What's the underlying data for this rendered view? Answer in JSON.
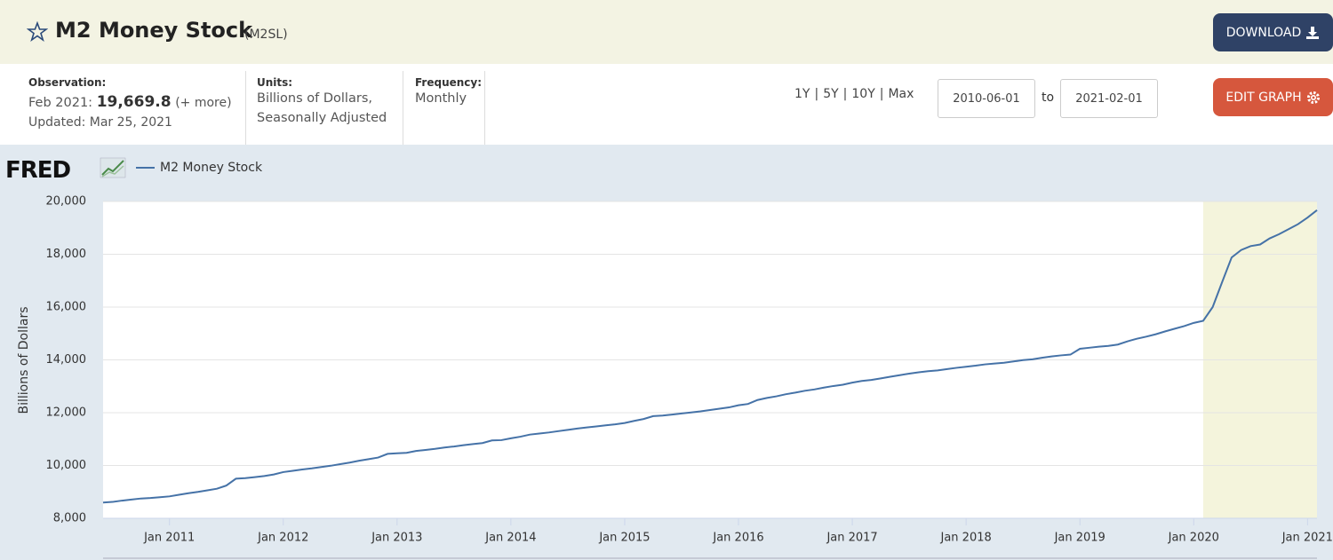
{
  "header": {
    "title": "M2 Money Stock",
    "series_id": "(M2SL)",
    "download": "DOWNLOAD"
  },
  "info": {
    "observation_label": "Observation:",
    "observation_date": "Feb 2021:",
    "observation_value": "19,669.8",
    "more": "(+ more)",
    "updated": "Updated: Mar 25, 2021",
    "units_label": "Units:",
    "units": [
      "Billions of Dollars,",
      "Seasonally Adjusted"
    ],
    "frequency_label": "Frequency:",
    "frequency": "Monthly"
  },
  "controls": {
    "ranges": [
      "1Y",
      "5Y",
      "10Y",
      "Max"
    ],
    "separator": "|",
    "start_date": "2010-06-01",
    "to": "to",
    "end_date": "2021-02-01",
    "edit": "EDIT GRAPH"
  },
  "chart_data": {
    "type": "line",
    "logo": "FRED",
    "y_label": "Billions of Dollars",
    "x": [
      "2010-06",
      "2010-07",
      "2010-08",
      "2010-09",
      "2010-10",
      "2010-11",
      "2010-12",
      "2011-01",
      "2011-02",
      "2011-03",
      "2011-04",
      "2011-05",
      "2011-06",
      "2011-07",
      "2011-08",
      "2011-09",
      "2011-10",
      "2011-11",
      "2011-12",
      "2012-01",
      "2012-02",
      "2012-03",
      "2012-04",
      "2012-05",
      "2012-06",
      "2012-07",
      "2012-08",
      "2012-09",
      "2012-10",
      "2012-11",
      "2012-12",
      "2013-01",
      "2013-02",
      "2013-03",
      "2013-04",
      "2013-05",
      "2013-06",
      "2013-07",
      "2013-08",
      "2013-09",
      "2013-10",
      "2013-11",
      "2013-12",
      "2014-01",
      "2014-02",
      "2014-03",
      "2014-04",
      "2014-05",
      "2014-06",
      "2014-07",
      "2014-08",
      "2014-09",
      "2014-10",
      "2014-11",
      "2014-12",
      "2015-01",
      "2015-02",
      "2015-03",
      "2015-04",
      "2015-05",
      "2015-06",
      "2015-07",
      "2015-08",
      "2015-09",
      "2015-10",
      "2015-11",
      "2015-12",
      "2016-01",
      "2016-02",
      "2016-03",
      "2016-04",
      "2016-05",
      "2016-06",
      "2016-07",
      "2016-08",
      "2016-09",
      "2016-10",
      "2016-11",
      "2016-12",
      "2017-01",
      "2017-02",
      "2017-03",
      "2017-04",
      "2017-05",
      "2017-06",
      "2017-07",
      "2017-08",
      "2017-09",
      "2017-10",
      "2017-11",
      "2017-12",
      "2018-01",
      "2018-02",
      "2018-03",
      "2018-04",
      "2018-05",
      "2018-06",
      "2018-07",
      "2018-08",
      "2018-09",
      "2018-10",
      "2018-11",
      "2018-12",
      "2019-01",
      "2019-02",
      "2019-03",
      "2019-04",
      "2019-05",
      "2019-06",
      "2019-07",
      "2019-08",
      "2019-09",
      "2019-10",
      "2019-11",
      "2019-12",
      "2020-01",
      "2020-02",
      "2020-03",
      "2020-04",
      "2020-05",
      "2020-06",
      "2020-07",
      "2020-08",
      "2020-09",
      "2020-10",
      "2020-11",
      "2020-12",
      "2021-01",
      "2021-02"
    ],
    "series": [
      {
        "name": "M2 Money Stock",
        "color": "#4572a7",
        "values": [
          8595,
          8620,
          8670,
          8710,
          8750,
          8770,
          8800,
          8830,
          8890,
          8950,
          9000,
          9060,
          9120,
          9240,
          9500,
          9520,
          9560,
          9600,
          9660,
          9750,
          9800,
          9850,
          9890,
          9940,
          9990,
          10050,
          10110,
          10180,
          10240,
          10300,
          10440,
          10460,
          10480,
          10550,
          10590,
          10630,
          10680,
          10720,
          10770,
          10810,
          10850,
          10950,
          10960,
          11030,
          11090,
          11170,
          11210,
          11250,
          11300,
          11350,
          11400,
          11440,
          11480,
          11520,
          11560,
          11610,
          11690,
          11760,
          11870,
          11890,
          11930,
          11970,
          12010,
          12050,
          12100,
          12150,
          12200,
          12280,
          12330,
          12480,
          12560,
          12620,
          12700,
          12760,
          12830,
          12880,
          12950,
          13010,
          13060,
          13140,
          13200,
          13240,
          13300,
          13360,
          13420,
          13480,
          13530,
          13570,
          13600,
          13650,
          13700,
          13740,
          13780,
          13830,
          13860,
          13890,
          13940,
          13990,
          14020,
          14080,
          14130,
          14170,
          14200,
          14420,
          14460,
          14500,
          14530,
          14580,
          14700,
          14800,
          14880,
          14970,
          15080,
          15180,
          15280,
          15400,
          15480,
          16000,
          16950,
          17880,
          18160,
          18310,
          18370,
          18600,
          18760,
          18950,
          19140,
          19390,
          19669.8
        ]
      }
    ],
    "xlim": [
      "2010-06",
      "2021-02"
    ],
    "xticks": [
      {
        "value": "2011-01",
        "label": "Jan 2011"
      },
      {
        "value": "2012-01",
        "label": "Jan 2012"
      },
      {
        "value": "2013-01",
        "label": "Jan 2013"
      },
      {
        "value": "2014-01",
        "label": "Jan 2014"
      },
      {
        "value": "2015-01",
        "label": "Jan 2015"
      },
      {
        "value": "2016-01",
        "label": "Jan 2016"
      },
      {
        "value": "2017-01",
        "label": "Jan 2017"
      },
      {
        "value": "2018-01",
        "label": "Jan 2018"
      },
      {
        "value": "2019-01",
        "label": "Jan 2019"
      },
      {
        "value": "2020-01",
        "label": "Jan 2020"
      },
      {
        "value": "2021-01",
        "label": "Jan 2021"
      }
    ],
    "ylim": [
      8000,
      20000
    ],
    "yticks": [
      {
        "value": 8000,
        "label": "8,000"
      },
      {
        "value": 10000,
        "label": "10,000"
      },
      {
        "value": 12000,
        "label": "12,000"
      },
      {
        "value": 14000,
        "label": "14,000"
      },
      {
        "value": 16000,
        "label": "16,000"
      },
      {
        "value": 18000,
        "label": "18,000"
      },
      {
        "value": 20000,
        "label": "20,000"
      }
    ],
    "grid": true,
    "shading": {
      "start": "2020-02",
      "end": "2021-02",
      "color": "#f4f4dc"
    }
  }
}
